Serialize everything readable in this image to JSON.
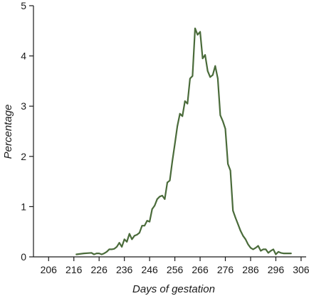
{
  "chart_data": {
    "type": "line",
    "xlabel": "Days of gestation",
    "ylabel": "Percentage",
    "xlim": [
      200,
      308
    ],
    "ylim": [
      0,
      5
    ],
    "xticks": [
      206,
      216,
      226,
      236,
      246,
      256,
      266,
      276,
      286,
      296,
      306
    ],
    "yticks": [
      0,
      1,
      2,
      3,
      4,
      5
    ],
    "grid": false,
    "series": [
      {
        "color": "#4a6b3a",
        "x": [
          217,
          220,
          223,
          224,
          225,
          226,
          227,
          228,
          229,
          230,
          231,
          232,
          233,
          234,
          235,
          236,
          237,
          238,
          239,
          240,
          241,
          242,
          243,
          244,
          245,
          246,
          247,
          248,
          249,
          250,
          251,
          252,
          253,
          254,
          255,
          256,
          257,
          258,
          259,
          260,
          261,
          262,
          263,
          264,
          265,
          266,
          267,
          268,
          269,
          270,
          271,
          272,
          273,
          274,
          275,
          276,
          277,
          278,
          279,
          280,
          281,
          282,
          283,
          284,
          285,
          286,
          287,
          288,
          289,
          290,
          291,
          292,
          293,
          294,
          295,
          296,
          297,
          298,
          299,
          300,
          301,
          302
        ],
        "y": [
          0.05,
          0.07,
          0.08,
          0.05,
          0.07,
          0.07,
          0.05,
          0.07,
          0.1,
          0.15,
          0.15,
          0.16,
          0.2,
          0.28,
          0.2,
          0.35,
          0.3,
          0.46,
          0.35,
          0.42,
          0.44,
          0.48,
          0.62,
          0.62,
          0.72,
          0.7,
          0.95,
          1.02,
          1.15,
          1.2,
          1.22,
          1.15,
          1.48,
          1.52,
          1.9,
          2.25,
          2.6,
          2.85,
          2.8,
          3.1,
          3.05,
          3.55,
          3.6,
          4.55,
          4.42,
          4.48,
          3.95,
          4.02,
          3.7,
          3.58,
          3.62,
          3.8,
          3.55,
          2.82,
          2.7,
          2.55,
          1.85,
          1.72,
          0.92,
          0.78,
          0.65,
          0.52,
          0.42,
          0.35,
          0.25,
          0.18,
          0.15,
          0.18,
          0.22,
          0.12,
          0.15,
          0.15,
          0.08,
          0.12,
          0.15,
          0.05,
          0.1,
          0.08,
          0.07,
          0.07,
          0.07,
          0.07
        ]
      }
    ]
  }
}
